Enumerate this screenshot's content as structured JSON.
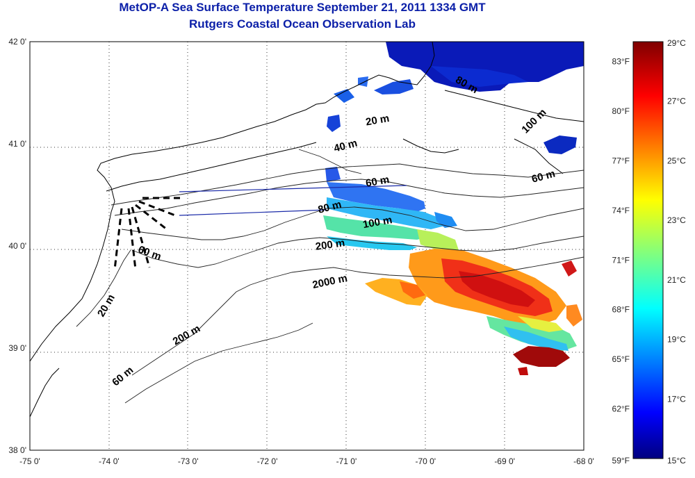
{
  "header": {
    "title": "MetOP-A Sea Surface Temperature September 21, 2011 1334 GMT",
    "subtitle": "Rutgers Coastal Ocean Observation Lab"
  },
  "axes": {
    "lat_ticks": [
      "42 0'",
      "41 0'",
      "40 0'",
      "39 0'",
      "38 0'"
    ],
    "lon_ticks": [
      "-75 0'",
      "-74 0'",
      "-73 0'",
      "-72 0'",
      "-71 0'",
      "-70 0'",
      "-69 0'",
      "-68 0'"
    ],
    "lon_range": [
      -75,
      -68
    ],
    "lat_range": [
      38,
      42
    ],
    "grid": "dotted"
  },
  "colorbar": {
    "fahrenheit_labels": [
      "83°F",
      "80°F",
      "77°F",
      "74°F",
      "71°F",
      "68°F",
      "65°F",
      "62°F",
      "59°F"
    ],
    "celsius_labels": [
      "29°C",
      "27°C",
      "25°C",
      "23°C",
      "21°C",
      "19°C",
      "17°C",
      "15°C"
    ],
    "range_celsius": [
      15,
      29
    ],
    "colormap": "jet"
  },
  "contour_labels": [
    {
      "text": "20 m",
      "lon": -70.6,
      "lat": 41.2
    },
    {
      "text": "40 m",
      "lon": -71.0,
      "lat": 40.95
    },
    {
      "text": "60 m",
      "lon": -70.6,
      "lat": 40.6
    },
    {
      "text": "80 m",
      "lon": -71.2,
      "lat": 40.35
    },
    {
      "text": "100 m",
      "lon": -70.6,
      "lat": 40.2
    },
    {
      "text": "200 m",
      "lon": -71.2,
      "lat": 39.98
    },
    {
      "text": "2000 m",
      "lon": -71.2,
      "lat": 39.62
    },
    {
      "text": "60 m",
      "lon": -73.5,
      "lat": 39.9
    },
    {
      "text": "20 m",
      "lon": -74.0,
      "lat": 39.4
    },
    {
      "text": "200 m",
      "lon": -73.0,
      "lat": 39.1
    },
    {
      "text": "60 m",
      "lon": -73.8,
      "lat": 38.7
    },
    {
      "text": "80 m",
      "lon": -69.5,
      "lat": 41.55
    },
    {
      "text": "100 m",
      "lon": -68.6,
      "lat": 41.2
    },
    {
      "text": "60 m",
      "lon": -68.5,
      "lat": 40.65
    }
  ]
}
